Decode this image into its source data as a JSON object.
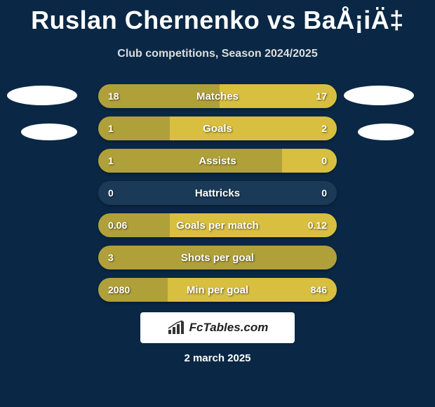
{
  "title": "Ruslan Chernenko vs BaÅ¡iÄ‡",
  "subtitle": "Club competitions, Season 2024/2025",
  "date": "2 march 2025",
  "logo_text": "FcTables.com",
  "colors": {
    "background": "#0a2845",
    "track": "#1a3a57",
    "left_bar": "#b0a03a",
    "right_bar": "#d8bf40",
    "text": "#ffffff"
  },
  "bars": [
    {
      "label": "Matches",
      "left_val": "18",
      "right_val": "17",
      "left_pct": 51,
      "right_pct": 49
    },
    {
      "label": "Goals",
      "left_val": "1",
      "right_val": "2",
      "left_pct": 30,
      "right_pct": 70
    },
    {
      "label": "Assists",
      "left_val": "1",
      "right_val": "0",
      "left_pct": 77,
      "right_pct": 23
    },
    {
      "label": "Hattricks",
      "left_val": "0",
      "right_val": "0",
      "left_pct": 0,
      "right_pct": 0
    },
    {
      "label": "Goals per match",
      "left_val": "0.06",
      "right_val": "0.12",
      "left_pct": 30,
      "right_pct": 70
    },
    {
      "label": "Shots per goal",
      "left_val": "3",
      "right_val": "",
      "left_pct": 100,
      "right_pct": 0
    },
    {
      "label": "Min per goal",
      "left_val": "2080",
      "right_val": "846",
      "left_pct": 29,
      "right_pct": 71
    }
  ]
}
